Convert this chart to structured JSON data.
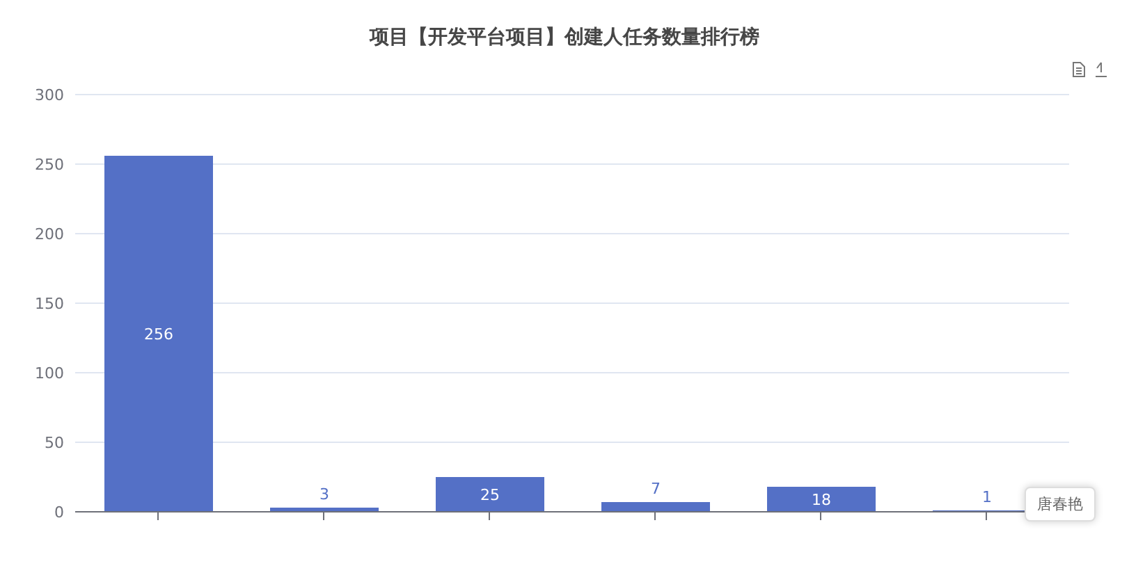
{
  "chart_data": {
    "type": "bar",
    "title": "项目【开发平台项目】创建人任务数量排行榜",
    "categories": [
      null,
      null,
      null,
      null,
      null,
      null
    ],
    "values": [
      256,
      3,
      25,
      7,
      18,
      1
    ],
    "color": "#5470c6",
    "ylim": [
      0,
      300
    ],
    "yticks": [
      0,
      50,
      100,
      150,
      200,
      250,
      300
    ],
    "grid": "y",
    "data_labels": true,
    "annotations": [
      "唐春艳"
    ]
  }
}
